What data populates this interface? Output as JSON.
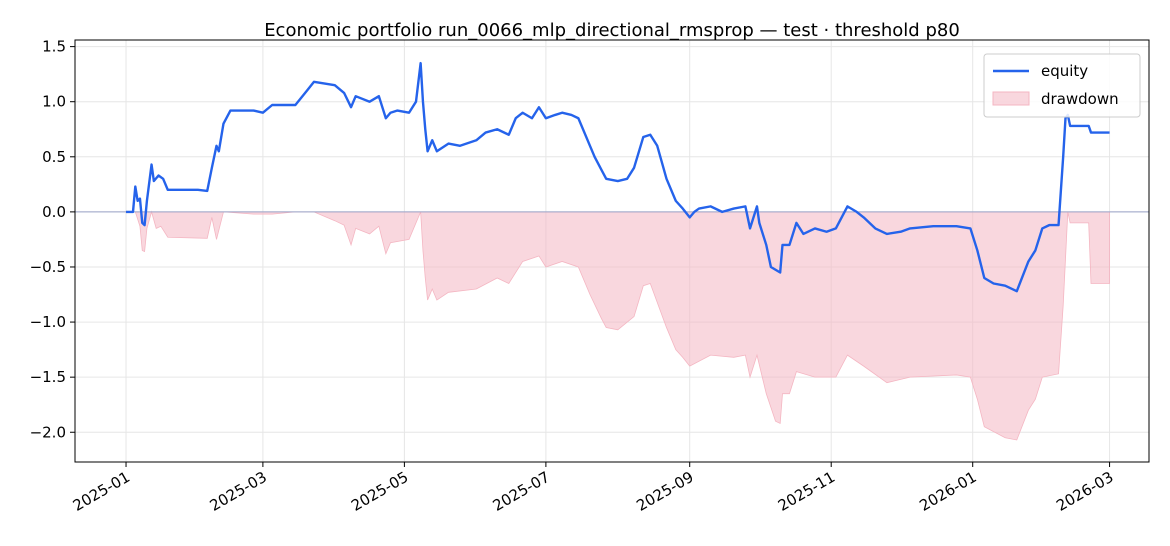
{
  "chart_data": {
    "type": "line",
    "title": "Economic portfolio run_0066_mlp_directional_rmsprop — test · threshold p80",
    "xlabel": "",
    "ylabel": "",
    "x_ticks": [
      "2025-01",
      "2025-03",
      "2025-05",
      "2025-07",
      "2025-09",
      "2025-11",
      "2026-01",
      "2026-03"
    ],
    "y_ticks": [
      "−2.0",
      "−1.5",
      "−1.0",
      "−0.5",
      "0.0",
      "0.5",
      "1.0",
      "1.5"
    ],
    "xlim": [
      "2024-12-10",
      "2026-03-18"
    ],
    "ylim": [
      -2.27,
      1.56
    ],
    "grid": true,
    "legend_position": "top-right",
    "colors": {
      "equity": "#2563eb",
      "drawdown_fill": "#f4b6c2",
      "zero_line": "#9aa3c8"
    },
    "series": [
      {
        "name": "equity",
        "kind": "line",
        "points": [
          [
            "2025-01-01",
            0.0
          ],
          [
            "2025-01-04",
            0.0
          ],
          [
            "2025-01-05",
            0.23
          ],
          [
            "2025-01-06",
            0.1
          ],
          [
            "2025-01-07",
            0.12
          ],
          [
            "2025-01-08",
            -0.1
          ],
          [
            "2025-01-09",
            -0.12
          ],
          [
            "2025-01-10",
            0.1
          ],
          [
            "2025-01-12",
            0.43
          ],
          [
            "2025-01-13",
            0.28
          ],
          [
            "2025-01-15",
            0.33
          ],
          [
            "2025-01-17",
            0.3
          ],
          [
            "2025-01-19",
            0.2
          ],
          [
            "2025-01-25",
            0.2
          ],
          [
            "2025-02-01",
            0.2
          ],
          [
            "2025-02-05",
            0.19
          ],
          [
            "2025-02-07",
            0.4
          ],
          [
            "2025-02-09",
            0.6
          ],
          [
            "2025-02-10",
            0.55
          ],
          [
            "2025-02-12",
            0.8
          ],
          [
            "2025-02-15",
            0.92
          ],
          [
            "2025-02-25",
            0.92
          ],
          [
            "2025-03-01",
            0.9
          ],
          [
            "2025-03-05",
            0.97
          ],
          [
            "2025-03-15",
            0.97
          ],
          [
            "2025-03-20",
            1.1
          ],
          [
            "2025-03-23",
            1.18
          ],
          [
            "2025-04-01",
            1.15
          ],
          [
            "2025-04-05",
            1.08
          ],
          [
            "2025-04-08",
            0.95
          ],
          [
            "2025-04-10",
            1.05
          ],
          [
            "2025-04-16",
            1.0
          ],
          [
            "2025-04-20",
            1.05
          ],
          [
            "2025-04-23",
            0.85
          ],
          [
            "2025-04-25",
            0.9
          ],
          [
            "2025-04-28",
            0.92
          ],
          [
            "2025-05-03",
            0.9
          ],
          [
            "2025-05-06",
            1.0
          ],
          [
            "2025-05-08",
            1.35
          ],
          [
            "2025-05-09",
            1.0
          ],
          [
            "2025-05-10",
            0.75
          ],
          [
            "2025-05-11",
            0.55
          ],
          [
            "2025-05-13",
            0.65
          ],
          [
            "2025-05-15",
            0.55
          ],
          [
            "2025-05-20",
            0.62
          ],
          [
            "2025-05-25",
            0.6
          ],
          [
            "2025-06-01",
            0.65
          ],
          [
            "2025-06-05",
            0.72
          ],
          [
            "2025-06-10",
            0.75
          ],
          [
            "2025-06-15",
            0.7
          ],
          [
            "2025-06-18",
            0.85
          ],
          [
            "2025-06-21",
            0.9
          ],
          [
            "2025-06-25",
            0.85
          ],
          [
            "2025-06-28",
            0.95
          ],
          [
            "2025-07-01",
            0.85
          ],
          [
            "2025-07-05",
            0.88
          ],
          [
            "2025-07-08",
            0.9
          ],
          [
            "2025-07-12",
            0.88
          ],
          [
            "2025-07-15",
            0.85
          ],
          [
            "2025-07-20",
            0.6
          ],
          [
            "2025-07-22",
            0.5
          ],
          [
            "2025-07-25",
            0.38
          ],
          [
            "2025-07-27",
            0.3
          ],
          [
            "2025-08-01",
            0.28
          ],
          [
            "2025-08-05",
            0.3
          ],
          [
            "2025-08-08",
            0.4
          ],
          [
            "2025-08-12",
            0.68
          ],
          [
            "2025-08-15",
            0.7
          ],
          [
            "2025-08-18",
            0.6
          ],
          [
            "2025-08-22",
            0.3
          ],
          [
            "2025-08-26",
            0.1
          ],
          [
            "2025-08-29",
            0.03
          ],
          [
            "2025-09-01",
            -0.05
          ],
          [
            "2025-09-03",
            0.0
          ],
          [
            "2025-09-05",
            0.03
          ],
          [
            "2025-09-10",
            0.05
          ],
          [
            "2025-09-15",
            0.0
          ],
          [
            "2025-09-20",
            0.03
          ],
          [
            "2025-09-25",
            0.05
          ],
          [
            "2025-09-27",
            -0.15
          ],
          [
            "2025-09-30",
            0.05
          ],
          [
            "2025-10-01",
            -0.1
          ],
          [
            "2025-10-04",
            -0.3
          ],
          [
            "2025-10-06",
            -0.5
          ],
          [
            "2025-10-10",
            -0.55
          ],
          [
            "2025-10-11",
            -0.3
          ],
          [
            "2025-10-14",
            -0.3
          ],
          [
            "2025-10-17",
            -0.1
          ],
          [
            "2025-10-20",
            -0.2
          ],
          [
            "2025-10-25",
            -0.15
          ],
          [
            "2025-10-30",
            -0.18
          ],
          [
            "2025-11-03",
            -0.15
          ],
          [
            "2025-11-08",
            0.05
          ],
          [
            "2025-11-12",
            0.0
          ],
          [
            "2025-11-15",
            -0.05
          ],
          [
            "2025-11-20",
            -0.15
          ],
          [
            "2025-11-25",
            -0.2
          ],
          [
            "2025-12-01",
            -0.18
          ],
          [
            "2025-12-05",
            -0.15
          ],
          [
            "2025-12-15",
            -0.13
          ],
          [
            "2025-12-25",
            -0.13
          ],
          [
            "2025-12-31",
            -0.15
          ],
          [
            "2026-01-03",
            -0.35
          ],
          [
            "2026-01-06",
            -0.6
          ],
          [
            "2026-01-10",
            -0.65
          ],
          [
            "2026-01-15",
            -0.67
          ],
          [
            "2026-01-20",
            -0.72
          ],
          [
            "2026-01-25",
            -0.45
          ],
          [
            "2026-01-28",
            -0.35
          ],
          [
            "2026-01-31",
            -0.15
          ],
          [
            "2026-02-03",
            -0.12
          ],
          [
            "2026-02-07",
            -0.12
          ],
          [
            "2026-02-09",
            0.5
          ],
          [
            "2026-02-10",
            0.85
          ],
          [
            "2026-02-11",
            0.88
          ],
          [
            "2026-02-12",
            0.78
          ],
          [
            "2026-02-20",
            0.78
          ],
          [
            "2026-02-21",
            0.72
          ],
          [
            "2026-03-01",
            0.72
          ]
        ]
      },
      {
        "name": "drawdown",
        "kind": "area",
        "points": [
          [
            "2025-01-01",
            0.0
          ],
          [
            "2025-01-05",
            0.0
          ],
          [
            "2025-01-07",
            -0.13
          ],
          [
            "2025-01-08",
            -0.35
          ],
          [
            "2025-01-09",
            -0.36
          ],
          [
            "2025-01-10",
            -0.15
          ],
          [
            "2025-01-12",
            0.0
          ],
          [
            "2025-01-14",
            -0.15
          ],
          [
            "2025-01-16",
            -0.13
          ],
          [
            "2025-01-19",
            -0.23
          ],
          [
            "2025-02-05",
            -0.24
          ],
          [
            "2025-02-07",
            -0.05
          ],
          [
            "2025-02-09",
            -0.25
          ],
          [
            "2025-02-12",
            0.0
          ],
          [
            "2025-02-25",
            -0.02
          ],
          [
            "2025-03-05",
            -0.02
          ],
          [
            "2025-03-15",
            0.0
          ],
          [
            "2025-03-23",
            0.0
          ],
          [
            "2025-04-01",
            -0.08
          ],
          [
            "2025-04-05",
            -0.12
          ],
          [
            "2025-04-08",
            -0.3
          ],
          [
            "2025-04-10",
            -0.15
          ],
          [
            "2025-04-16",
            -0.2
          ],
          [
            "2025-04-20",
            -0.13
          ],
          [
            "2025-04-23",
            -0.38
          ],
          [
            "2025-04-25",
            -0.28
          ],
          [
            "2025-05-03",
            -0.25
          ],
          [
            "2025-05-08",
            0.0
          ],
          [
            "2025-05-09",
            -0.35
          ],
          [
            "2025-05-10",
            -0.6
          ],
          [
            "2025-05-11",
            -0.8
          ],
          [
            "2025-05-13",
            -0.7
          ],
          [
            "2025-05-15",
            -0.8
          ],
          [
            "2025-05-20",
            -0.73
          ],
          [
            "2025-06-01",
            -0.7
          ],
          [
            "2025-06-10",
            -0.6
          ],
          [
            "2025-06-15",
            -0.65
          ],
          [
            "2025-06-21",
            -0.45
          ],
          [
            "2025-06-28",
            -0.4
          ],
          [
            "2025-07-01",
            -0.5
          ],
          [
            "2025-07-08",
            -0.45
          ],
          [
            "2025-07-15",
            -0.5
          ],
          [
            "2025-07-20",
            -0.75
          ],
          [
            "2025-07-25",
            -0.97
          ],
          [
            "2025-07-27",
            -1.05
          ],
          [
            "2025-08-01",
            -1.07
          ],
          [
            "2025-08-08",
            -0.95
          ],
          [
            "2025-08-12",
            -0.67
          ],
          [
            "2025-08-15",
            -0.65
          ],
          [
            "2025-08-22",
            -1.05
          ],
          [
            "2025-08-26",
            -1.25
          ],
          [
            "2025-08-29",
            -1.32
          ],
          [
            "2025-09-01",
            -1.4
          ],
          [
            "2025-09-10",
            -1.3
          ],
          [
            "2025-09-20",
            -1.32
          ],
          [
            "2025-09-25",
            -1.3
          ],
          [
            "2025-09-27",
            -1.5
          ],
          [
            "2025-09-30",
            -1.3
          ],
          [
            "2025-10-04",
            -1.65
          ],
          [
            "2025-10-08",
            -1.9
          ],
          [
            "2025-10-10",
            -1.92
          ],
          [
            "2025-10-11",
            -1.65
          ],
          [
            "2025-10-14",
            -1.65
          ],
          [
            "2025-10-17",
            -1.45
          ],
          [
            "2025-10-25",
            -1.5
          ],
          [
            "2025-11-03",
            -1.5
          ],
          [
            "2025-11-08",
            -1.3
          ],
          [
            "2025-11-15",
            -1.4
          ],
          [
            "2025-11-25",
            -1.55
          ],
          [
            "2025-12-05",
            -1.5
          ],
          [
            "2025-12-25",
            -1.48
          ],
          [
            "2025-12-31",
            -1.5
          ],
          [
            "2026-01-03",
            -1.7
          ],
          [
            "2026-01-06",
            -1.95
          ],
          [
            "2026-01-15",
            -2.05
          ],
          [
            "2026-01-20",
            -2.07
          ],
          [
            "2026-01-25",
            -1.8
          ],
          [
            "2026-01-28",
            -1.7
          ],
          [
            "2026-01-31",
            -1.5
          ],
          [
            "2026-02-07",
            -1.47
          ],
          [
            "2026-02-09",
            -0.85
          ],
          [
            "2026-02-11",
            0.0
          ],
          [
            "2026-02-12",
            -0.1
          ],
          [
            "2026-02-20",
            -0.1
          ],
          [
            "2026-02-21",
            -0.65
          ],
          [
            "2026-03-01",
            -0.65
          ]
        ]
      }
    ]
  }
}
